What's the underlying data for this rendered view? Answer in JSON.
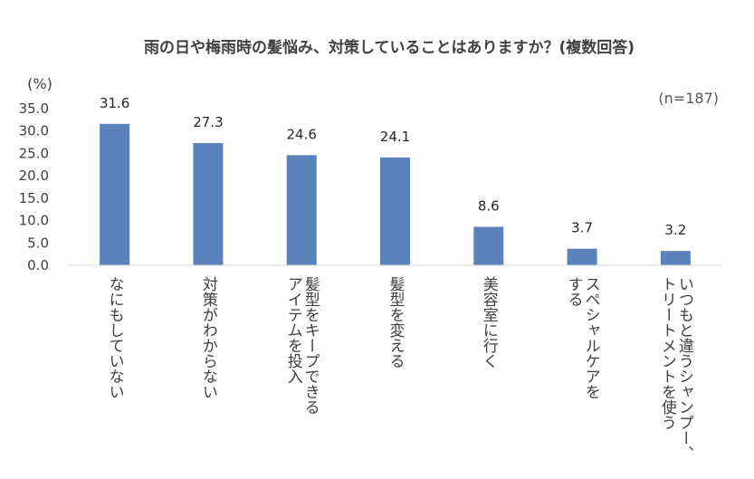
{
  "chart_data": {
    "type": "bar",
    "title": "雨の日や梅雨時の髪悩み、対策していることはありますか？(複数回答)",
    "ylabel": "(%)",
    "note": "(n=187)",
    "ylim": [
      0,
      35
    ],
    "yticks": [
      "0.0",
      "5.0",
      "10.0",
      "15.0",
      "20.0",
      "25.0",
      "30.0",
      "35.0"
    ],
    "categories": [
      [
        "なにもしていない"
      ],
      [
        "対策がわからない"
      ],
      [
        "髪型をキープできる",
        "アイテムを投入"
      ],
      [
        "髪型を変える"
      ],
      [
        "美容室に行く"
      ],
      [
        "スペシャルケアを",
        "する"
      ],
      [
        "いつもと違うシャンプー、",
        "トリートメントを使う"
      ]
    ],
    "values": [
      31.6,
      27.3,
      24.6,
      24.1,
      8.6,
      3.7,
      3.2
    ],
    "value_labels": [
      "31.6",
      "27.3",
      "24.6",
      "24.1",
      "8.6",
      "3.7",
      "3.2"
    ],
    "bar_color": "#5B82BB",
    "grid": false,
    "legend": "none"
  }
}
